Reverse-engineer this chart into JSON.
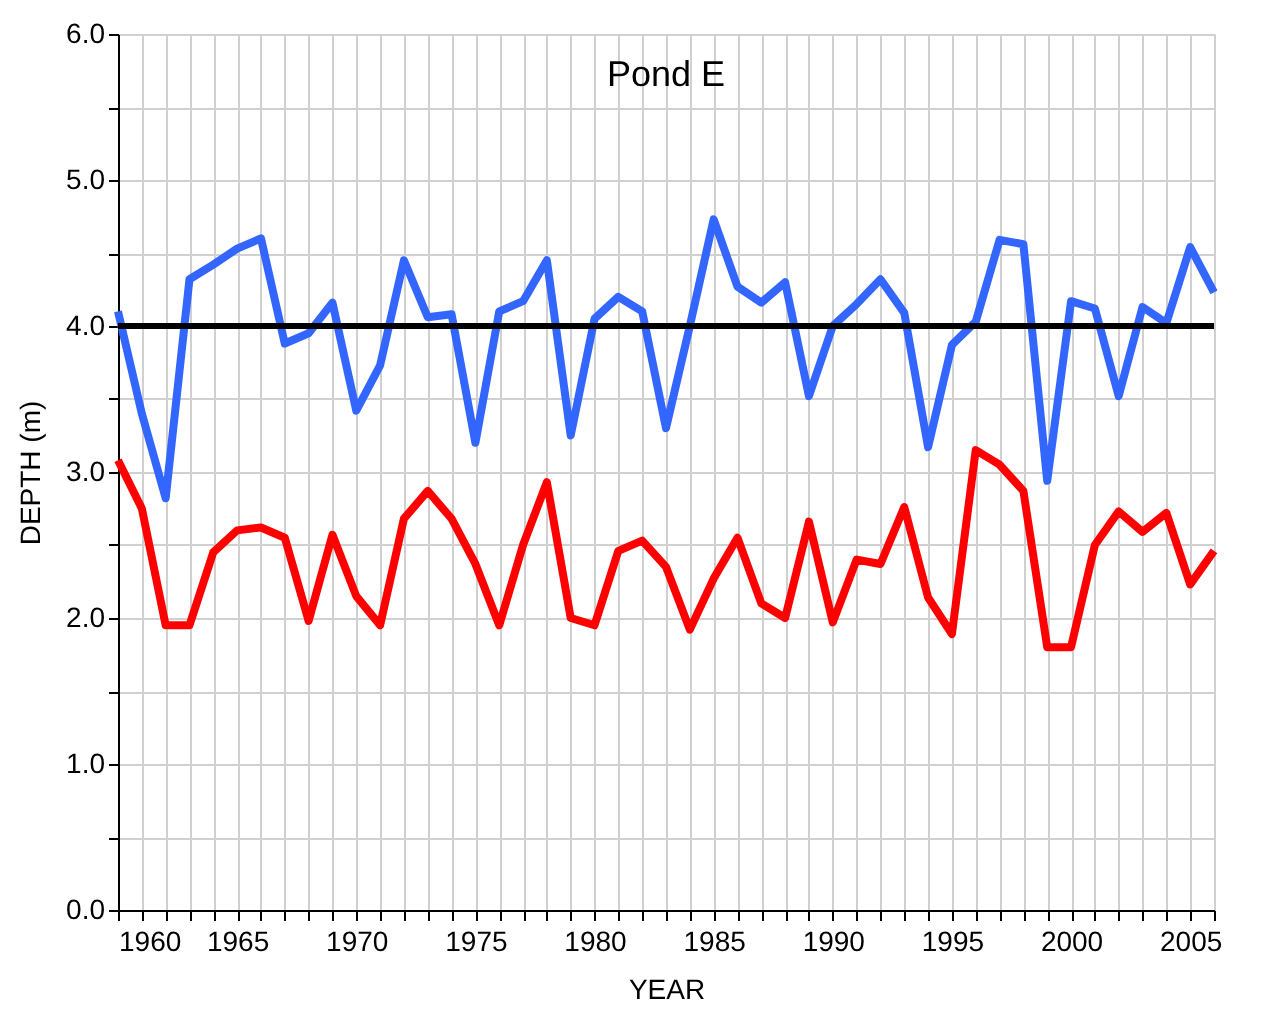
{
  "chart_data": {
    "type": "line",
    "title": "Pond E",
    "xlabel": "YEAR",
    "ylabel": "DEPTH (m)",
    "x": [
      1960,
      1961,
      1962,
      1963,
      1964,
      1965,
      1966,
      1967,
      1968,
      1969,
      1970,
      1971,
      1972,
      1973,
      1974,
      1975,
      1976,
      1977,
      1978,
      1979,
      1980,
      1981,
      1982,
      1983,
      1984,
      1985,
      1986,
      1987,
      1988,
      1989,
      1990,
      1991,
      1992,
      1993,
      1994,
      1995,
      1996,
      1997,
      1998,
      1999,
      2000,
      2001,
      2002,
      2003,
      2004,
      2005,
      2006
    ],
    "series": [
      {
        "color": "#3366ff",
        "values": [
          4.1,
          3.4,
          2.82,
          4.32,
          4.42,
          4.53,
          4.6,
          3.88,
          3.95,
          4.16,
          3.42,
          3.73,
          4.45,
          4.06,
          4.08,
          3.2,
          4.1,
          4.17,
          4.45,
          3.25,
          4.05,
          4.2,
          4.1,
          3.3,
          4.0,
          4.73,
          4.27,
          4.16,
          4.3,
          3.52,
          4.0,
          4.15,
          4.32,
          4.09,
          3.17,
          3.87,
          4.03,
          4.59,
          4.56,
          2.94,
          4.17,
          4.12,
          3.52,
          4.13,
          4.02,
          4.54,
          4.23
        ]
      },
      {
        "color": "#ff0000",
        "values": [
          3.08,
          2.75,
          1.95,
          1.95,
          2.45,
          2.6,
          2.62,
          2.55,
          1.98,
          2.57,
          2.15,
          1.95,
          2.68,
          2.87,
          2.68,
          2.37,
          1.95,
          2.5,
          2.93,
          2.0,
          1.95,
          2.46,
          2.53,
          2.35,
          1.92,
          2.27,
          2.55,
          2.1,
          2.0,
          2.66,
          1.97,
          2.4,
          2.37,
          2.76,
          2.14,
          1.89,
          3.15,
          3.05,
          2.87,
          1.8,
          1.8,
          2.5,
          2.73,
          2.59,
          2.72,
          2.23,
          2.46
        ]
      }
    ],
    "ref_lines": [
      {
        "axis": "y",
        "value": 4.0,
        "color": "#000000"
      }
    ],
    "xlim": [
      1960,
      2006
    ],
    "xticks": [
      1960,
      {
        "value": 1961,
        "label": null
      },
      {
        "value": 1962,
        "label": null
      },
      {
        "value": 1963,
        "label": null
      },
      {
        "value": 1964,
        "label": null
      },
      1965,
      {
        "value": 1966,
        "label": null
      },
      {
        "value": 1967,
        "label": null
      },
      {
        "value": 1968,
        "label": null
      },
      {
        "value": 1969,
        "label": null
      },
      1970,
      {
        "value": 1971,
        "label": null
      },
      {
        "value": 1972,
        "label": null
      },
      {
        "value": 1973,
        "label": null
      },
      {
        "value": 1974,
        "label": null
      },
      1975,
      {
        "value": 1976,
        "label": null
      },
      {
        "value": 1977,
        "label": null
      },
      {
        "value": 1978,
        "label": null
      },
      {
        "value": 1979,
        "label": null
      },
      1980,
      {
        "value": 1981,
        "label": null
      },
      {
        "value": 1982,
        "label": null
      },
      {
        "value": 1983,
        "label": null
      },
      {
        "value": 1984,
        "label": null
      },
      1985,
      {
        "value": 1986,
        "label": null
      },
      {
        "value": 1987,
        "label": null
      },
      {
        "value": 1988,
        "label": null
      },
      {
        "value": 1989,
        "label": null
      },
      1990,
      {
        "value": 1991,
        "label": null
      },
      {
        "value": 1992,
        "label": null
      },
      {
        "value": 1993,
        "label": null
      },
      {
        "value": 1994,
        "label": null
      },
      1995,
      {
        "value": 1996,
        "label": null
      },
      {
        "value": 1997,
        "label": null
      },
      {
        "value": 1998,
        "label": null
      },
      {
        "value": 1999,
        "label": null
      },
      2000,
      {
        "value": 2001,
        "label": null
      },
      {
        "value": 2002,
        "label": null
      },
      {
        "value": 2003,
        "label": null
      },
      {
        "value": 2004,
        "label": null
      },
      2005,
      {
        "value": 2006,
        "label": null
      }
    ],
    "ylim": [
      0,
      6
    ],
    "yticks": [
      {
        "value": 0,
        "label": "0.0"
      },
      {
        "value": 0.5,
        "label": null
      },
      {
        "value": 1,
        "label": "1.0"
      },
      {
        "value": 1.5,
        "label": null
      },
      {
        "value": 2,
        "label": "2.0"
      },
      {
        "value": 2.5,
        "label": null
      },
      {
        "value": 3,
        "label": "3.0"
      },
      {
        "value": 3.5,
        "label": null
      },
      {
        "value": 4,
        "label": "4.0"
      },
      {
        "value": 4.5,
        "label": null
      },
      {
        "value": 5,
        "label": "5.0"
      },
      {
        "value": 5.5,
        "label": null
      },
      {
        "value": 6,
        "label": "6.0"
      }
    ],
    "grid": true,
    "marker": "none",
    "line_style": "solid"
  }
}
